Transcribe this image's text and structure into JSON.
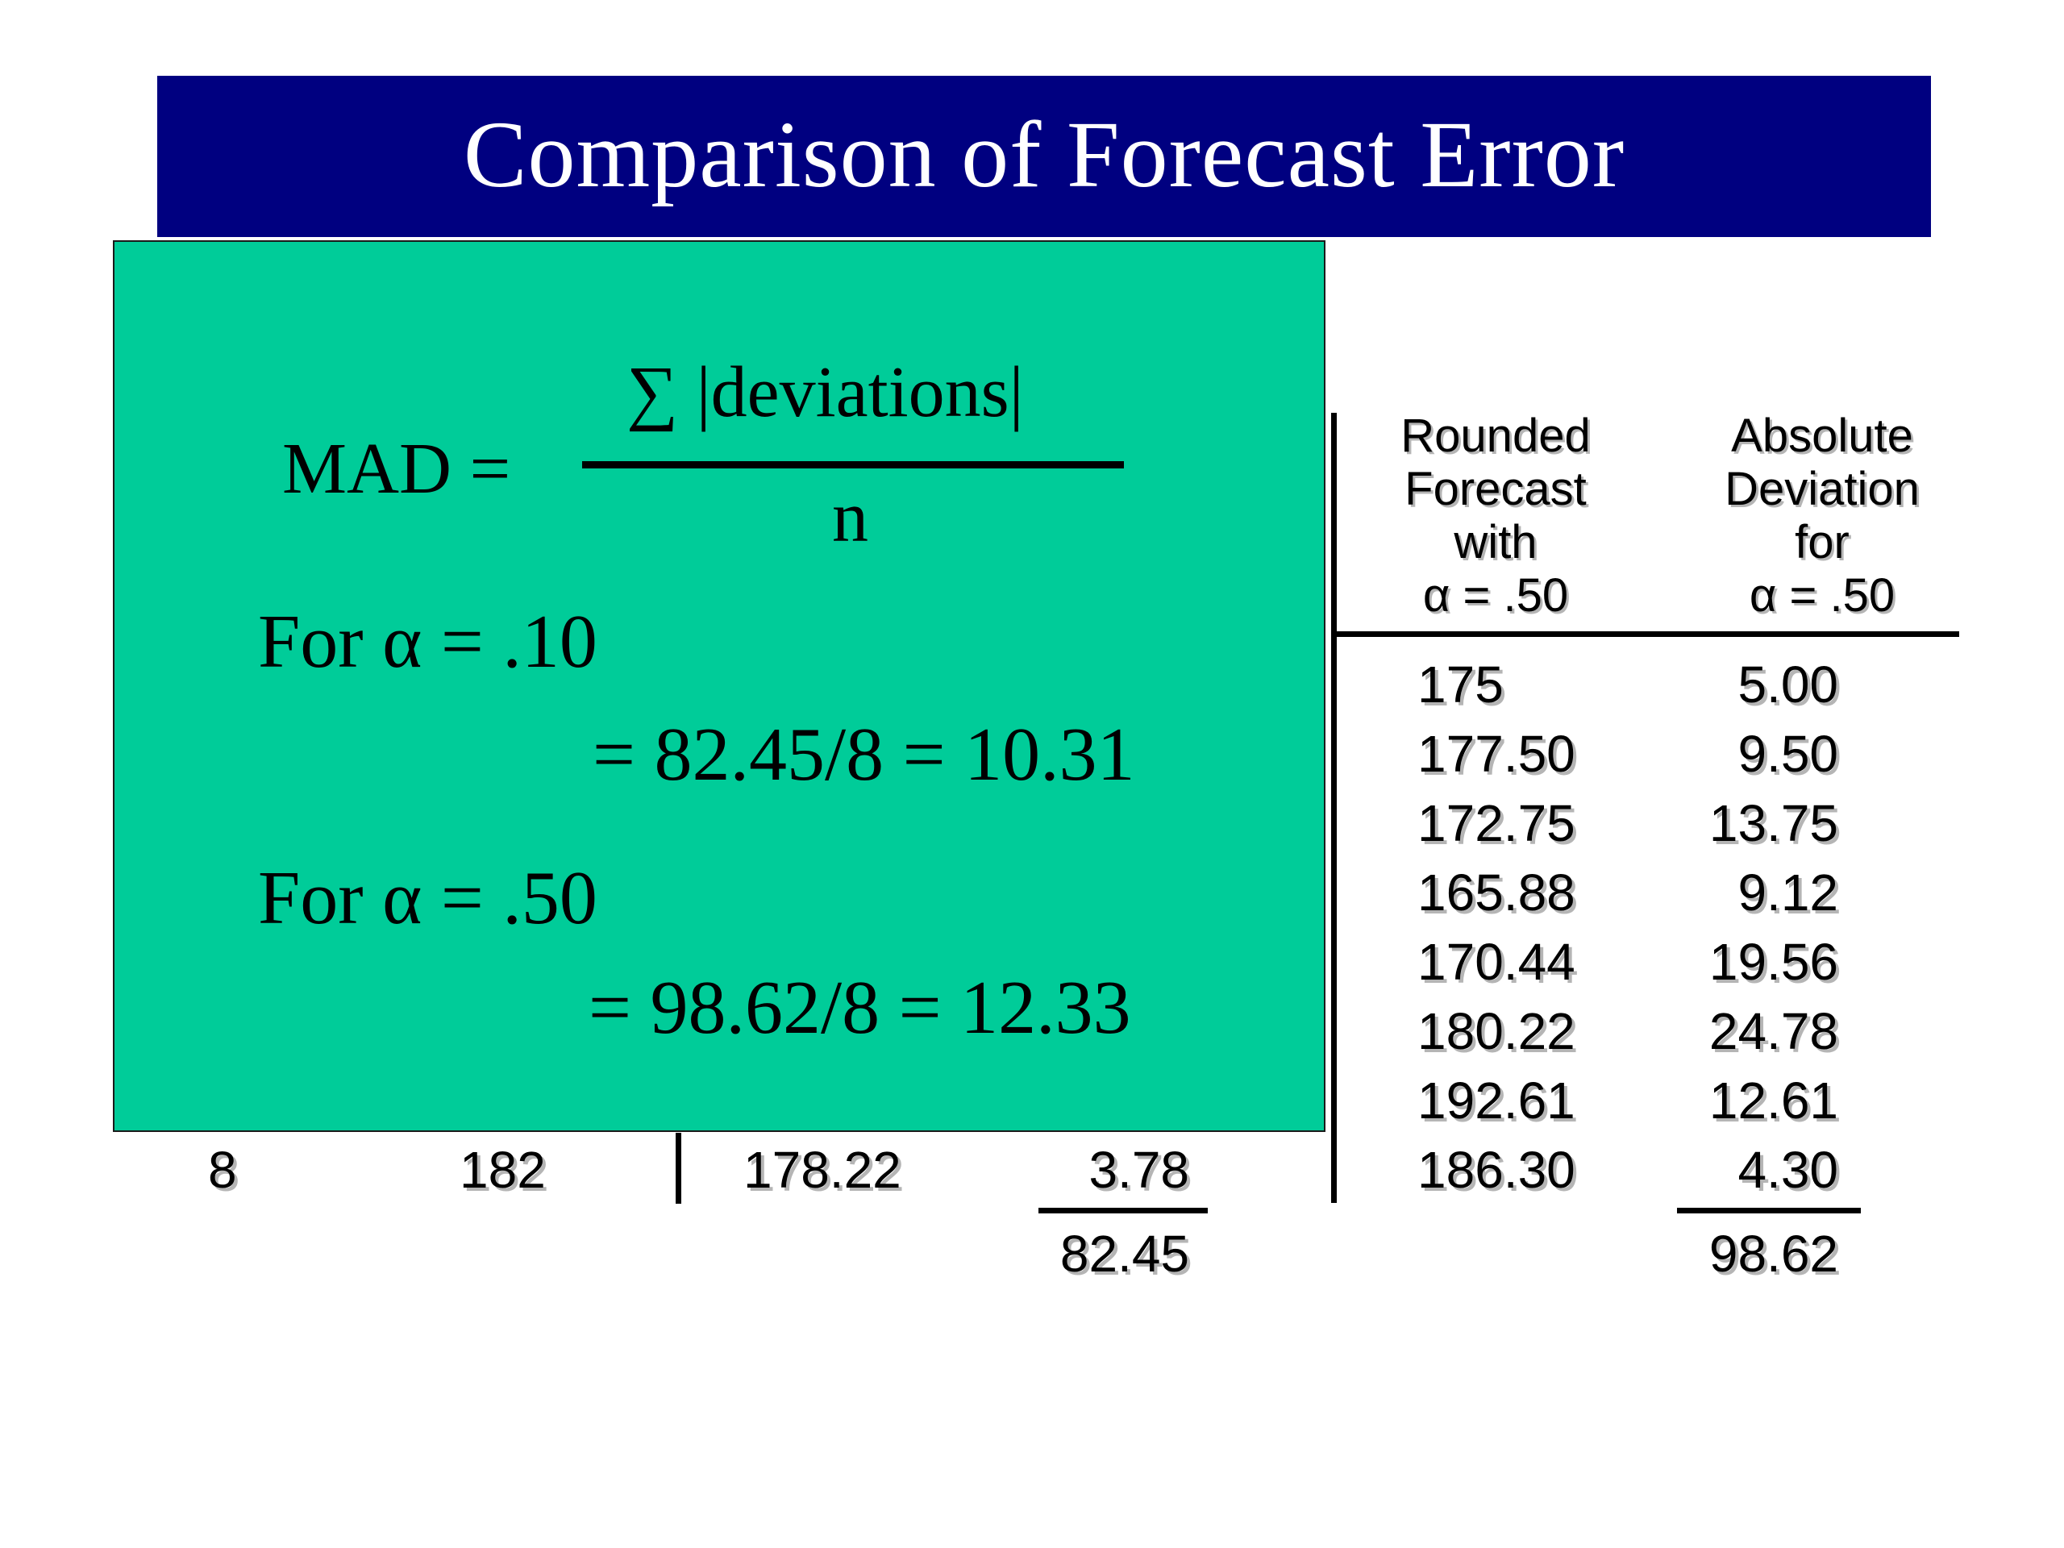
{
  "title": "Comparison of Forecast Error",
  "table": {
    "headers": {
      "rounded_forecast": [
        "Rounded",
        "Forecast",
        "with",
        "α = .50"
      ],
      "absolute_deviation": [
        "Absolute",
        "Deviation",
        "for",
        "α = .50"
      ]
    },
    "rows": [
      {
        "forecast": "175",
        "deviation": "5.00"
      },
      {
        "forecast": "177.50",
        "deviation": "9.50"
      },
      {
        "forecast": "172.75",
        "deviation": "13.75"
      },
      {
        "forecast": "165.88",
        "deviation": "9.12"
      },
      {
        "forecast": "170.44",
        "deviation": "19.56"
      },
      {
        "forecast": "180.22",
        "deviation": "24.78"
      },
      {
        "forecast": "192.61",
        "deviation": "12.61"
      },
      {
        "forecast": "186.30",
        "deviation": "4.30"
      }
    ],
    "left_row": {
      "quarter": "8",
      "actual": "182",
      "forecast_alpha_10": "178.22",
      "deviation_alpha_10": "3.78"
    },
    "totals": {
      "alpha_10": "82.45",
      "alpha_50": "98.62"
    }
  },
  "formula": {
    "lhs": "MAD =",
    "numerator": "∑ |deviations|",
    "denominator": "n",
    "case1_label": "For α = .10",
    "case1_result": "= 82.45/8 = 10.31",
    "case2_label": "For α = .50",
    "case2_result": "= 98.62/8 = 12.33"
  }
}
